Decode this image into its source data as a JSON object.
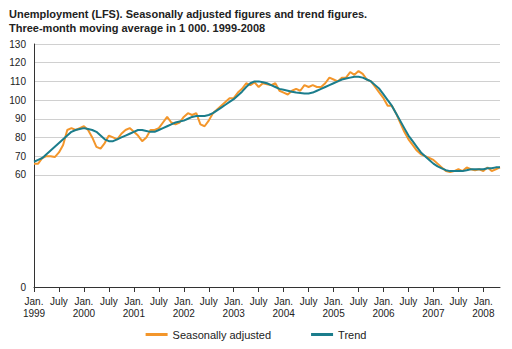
{
  "chart_data": {
    "type": "line",
    "title": "Unemployment (LFS). Seasonally adjusted figures and trend figures.\nThree-month moving average in 1 000. 1999-2008",
    "categories": [
      "Jan.\n1999",
      null,
      null,
      null,
      null,
      null,
      "July",
      null,
      null,
      null,
      null,
      null,
      "Jan.\n2000",
      null,
      null,
      null,
      null,
      null,
      "July",
      null,
      null,
      null,
      null,
      null,
      "Jan.\n2001",
      null,
      null,
      null,
      null,
      null,
      "July",
      null,
      null,
      null,
      null,
      null,
      "Jan.\n2002",
      null,
      null,
      null,
      null,
      null,
      "July",
      null,
      null,
      null,
      null,
      null,
      "Jan.\n2003",
      null,
      null,
      null,
      null,
      null,
      "July",
      null,
      null,
      null,
      null,
      null,
      "Jan.\n2004",
      null,
      null,
      null,
      null,
      null,
      "July",
      null,
      null,
      null,
      null,
      null,
      "Jan.\n2005",
      null,
      null,
      null,
      null,
      null,
      "July",
      null,
      null,
      null,
      null,
      null,
      "Jan.\n2006",
      null,
      null,
      null,
      null,
      null,
      "July",
      null,
      null,
      null,
      null,
      null,
      "Jan.\n2007",
      null,
      null,
      null,
      null,
      null,
      "July",
      null,
      null,
      null,
      null,
      null,
      "Jan.\n2008",
      null,
      null,
      null,
      null
    ],
    "series": [
      {
        "name": "Seasonally adjusted",
        "color": "#f3962b",
        "values": [
          66,
          66,
          69,
          70,
          70,
          69.5,
          72,
          76,
          84,
          85,
          84,
          85,
          86,
          84,
          80,
          75,
          74,
          77,
          81,
          80,
          79,
          82,
          84,
          85,
          83,
          81,
          78,
          80,
          84,
          84,
          85,
          88,
          91,
          88,
          87,
          88,
          91,
          93,
          92,
          93,
          87,
          86,
          89,
          93,
          95,
          97,
          99,
          101,
          101,
          104,
          106,
          109,
          108,
          109.5,
          107,
          109,
          108.5,
          108,
          109,
          105,
          104,
          103,
          105,
          106,
          105,
          108,
          107,
          108,
          107,
          107,
          109,
          112,
          111,
          110,
          112,
          112,
          115,
          113.5,
          115.5,
          114,
          111,
          110,
          107,
          104,
          101,
          97,
          97,
          93,
          88,
          83,
          79,
          76,
          73,
          71,
          70,
          69,
          68,
          66,
          64,
          62,
          61.5,
          62,
          63,
          62,
          64,
          63,
          62.5,
          63,
          62,
          64,
          62,
          63,
          64
        ]
      },
      {
        "name": "Trend",
        "color": "#1b7d8c",
        "values": [
          67,
          68,
          69,
          71,
          73,
          75,
          77,
          79,
          81,
          83,
          84,
          84.5,
          85,
          84.5,
          84,
          83,
          81,
          79,
          78,
          78,
          79,
          80,
          81,
          82,
          83,
          84,
          84,
          83.5,
          83,
          83,
          84,
          85,
          86,
          87,
          88,
          88.5,
          89,
          90,
          91,
          91.5,
          91.5,
          91.5,
          92,
          93,
          94.5,
          96,
          97.5,
          99,
          100.5,
          102.5,
          104.5,
          107,
          109,
          110,
          110,
          109.5,
          109,
          108,
          107,
          106,
          105.5,
          105,
          104.5,
          104,
          103.8,
          103.5,
          103.5,
          104,
          105,
          106,
          107,
          108,
          109,
          110,
          111,
          111.5,
          112,
          112.5,
          112.5,
          112,
          111,
          110,
          108,
          106,
          103,
          100,
          97,
          93,
          89,
          85,
          81,
          78,
          75,
          72,
          70,
          68,
          66,
          64.5,
          63.5,
          62.5,
          62,
          62,
          62,
          62,
          62.5,
          63,
          63,
          63,
          63,
          63.5,
          63.5,
          64,
          64
        ]
      }
    ],
    "ylim": [
      0,
      130
    ],
    "yticks": [
      0,
      60,
      70,
      80,
      90,
      100,
      110,
      120,
      130
    ],
    "grid": true,
    "legend": "bottom"
  }
}
